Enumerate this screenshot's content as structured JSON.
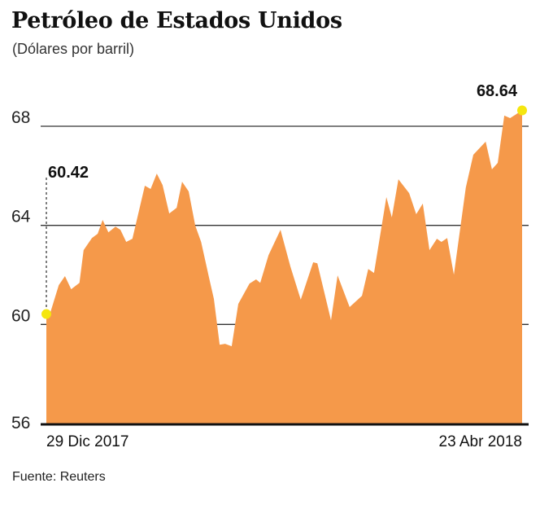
{
  "chart_data": {
    "type": "area",
    "title": "Petróleo de Estados Unidos",
    "subtitle": "(Dólares por barril)",
    "source": "Fuente: Reuters",
    "xlabel": "",
    "ylabel": "Dólares por barril",
    "x_unit": "days since 29 Dic 2017",
    "x_tick_labels": [
      "29 Dic 2017",
      "23 Abr 2018"
    ],
    "xlim": [
      0,
      115
    ],
    "ylim": [
      56,
      69.5
    ],
    "y_ticks": [
      56,
      60,
      64,
      68
    ],
    "grid": true,
    "color": "#f5994a",
    "marker_color": "#f5e60f",
    "annotations": [
      {
        "label": "60.42",
        "x": 0,
        "y": 60.42
      },
      {
        "label": "68.64",
        "x": 115,
        "y": 68.64
      }
    ],
    "x": [
      0,
      1,
      3,
      4.5,
      6,
      8,
      9,
      11,
      12.4,
      13.6,
      15,
      16.7,
      17.9,
      19.3,
      20.8,
      23.8,
      25.2,
      26.7,
      28.1,
      29.7,
      31.5,
      32.8,
      34.4,
      36,
      37.4,
      39.3,
      40.5,
      41.9,
      43.2,
      44.8,
      46.4,
      49.1,
      50.7,
      51.7,
      53.7,
      56.6,
      59,
      61.5,
      64.5,
      65.5,
      68.8,
      70.4,
      73.3,
      76.3,
      77.8,
      79.2,
      82.2,
      83.5,
      85.1,
      87.7,
      89.4,
      91,
      92.6,
      94.4,
      95.5,
      96.9,
      98.5,
      101.4,
      103.2,
      106.2,
      107.7,
      109.1,
      110.7,
      112.1,
      113.6,
      115
    ],
    "values": [
      60.42,
      60.5,
      61.59,
      61.95,
      61.42,
      61.68,
      63.0,
      63.49,
      63.66,
      64.22,
      63.72,
      63.95,
      63.82,
      63.33,
      63.46,
      65.6,
      65.47,
      66.09,
      65.63,
      64.48,
      64.71,
      65.76,
      65.37,
      63.99,
      63.33,
      61.91,
      61.03,
      59.18,
      59.22,
      59.12,
      60.83,
      61.65,
      61.82,
      61.68,
      62.8,
      63.82,
      62.34,
      61.0,
      62.51,
      62.47,
      60.17,
      61.98,
      60.7,
      61.16,
      62.24,
      62.08,
      65.14,
      64.32,
      65.86,
      65.3,
      64.45,
      64.88,
      63.0,
      63.46,
      63.33,
      63.49,
      62.01,
      65.53,
      66.85,
      67.38,
      66.26,
      66.52,
      68.43,
      68.33,
      68.49,
      68.64
    ]
  }
}
